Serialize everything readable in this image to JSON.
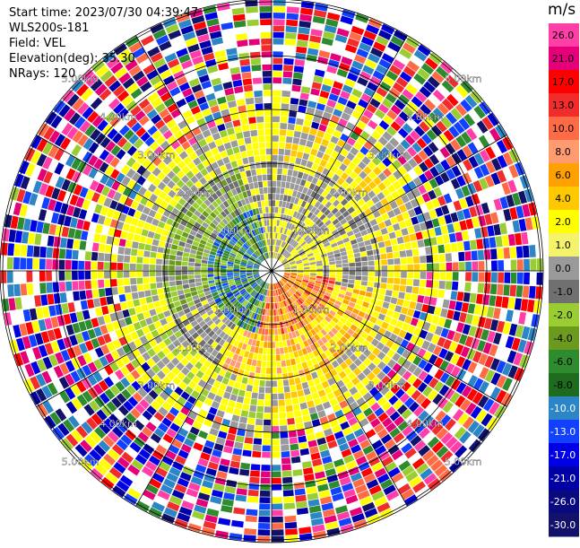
{
  "info": {
    "start_time": "Start time: 2023/07/30 04:39:47",
    "instrument": "WLS200s-181",
    "field": "Field: VEL",
    "elevation": "Elevation(deg): 35.30",
    "nrays": "NRays: 120"
  },
  "colorbar": {
    "unit": "m/s",
    "ticks": [
      "26.0",
      "21.0",
      "17.0",
      "13.0",
      "10.0",
      "8.0",
      "6.0",
      "4.0",
      "2.0",
      "1.0",
      "0.0",
      "-1.0",
      "-2.0",
      "-4.0",
      "-6.0",
      "-8.0",
      "-10.0",
      "-13.0",
      "-17.0",
      "-21.0",
      "-26.0",
      "-30.0"
    ],
    "colors": [
      "#ff3fa7",
      "#e5007a",
      "#ff0000",
      "#f22b2b",
      "#ff6b45",
      "#ff9b6e",
      "#ffa100",
      "#ffc800",
      "#ffff00",
      "#f5f36a",
      "#9a9a9a",
      "#707070",
      "#9acd32",
      "#6b9a1e",
      "#2e8b2e",
      "#1e6b1e",
      "#2b85c7",
      "#1240ff",
      "#0000e6",
      "#0000a8",
      "#0a0a80",
      "#12126a"
    ]
  },
  "chart_data": {
    "type": "heatmap",
    "title": "",
    "field": "VEL",
    "units": "m/s",
    "nrays": 120,
    "elevation_deg": 35.3,
    "value_range": [
      -30.0,
      26.0
    ],
    "range_rings": [
      {
        "label": "1.00km"
      },
      {
        "label": "2.00km"
      },
      {
        "label": "3.00km"
      },
      {
        "label": "4.00km"
      },
      {
        "label": "5.00km"
      }
    ],
    "ring_radii_km": [
      1,
      2,
      3,
      4,
      5
    ],
    "max_range_km": 5.0,
    "azimuth_lines_deg": [
      0,
      30,
      60,
      90,
      120,
      150,
      180,
      210,
      240,
      270,
      300,
      330
    ],
    "pattern": "Low-level: blue/green negative velocities west of center, orange/red positive velocities south-east of center, gray near-zero ring; yellow ~2 m/s band; outer ranges noise."
  }
}
